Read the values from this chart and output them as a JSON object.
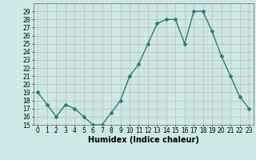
{
  "x": [
    0,
    1,
    2,
    3,
    4,
    5,
    6,
    7,
    8,
    9,
    10,
    11,
    12,
    13,
    14,
    15,
    16,
    17,
    18,
    19,
    20,
    21,
    22,
    23
  ],
  "y": [
    19,
    17.5,
    16,
    17.5,
    17,
    16,
    15,
    15,
    16.5,
    18,
    21,
    22.5,
    25,
    27.5,
    28,
    28,
    25,
    29,
    29,
    26.5,
    23.5,
    21,
    18.5,
    17
  ],
  "line_color": "#2e7d6e",
  "marker": "D",
  "marker_size": 2.0,
  "bg_color": "#cce9e8",
  "grid_color": "#b8d8d6",
  "xlabel": "Humidex (Indice chaleur)",
  "xlim": [
    -0.5,
    23.5
  ],
  "ylim": [
    15,
    30
  ],
  "yticks": [
    15,
    16,
    17,
    18,
    19,
    20,
    21,
    22,
    23,
    24,
    25,
    26,
    27,
    28,
    29
  ],
  "xticks": [
    0,
    1,
    2,
    3,
    4,
    5,
    6,
    7,
    8,
    9,
    10,
    11,
    12,
    13,
    14,
    15,
    16,
    17,
    18,
    19,
    20,
    21,
    22,
    23
  ],
  "xlabel_fontsize": 7,
  "tick_fontsize": 5.5,
  "line_width": 1.0
}
